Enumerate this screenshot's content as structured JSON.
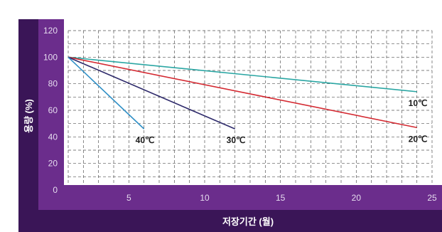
{
  "chart_data": {
    "type": "line",
    "xlabel": "저장기간 (월)",
    "ylabel": "용량 (%)",
    "xlim": [
      1,
      25
    ],
    "ylim": [
      0,
      120
    ],
    "x_ticks": [
      5,
      10,
      15,
      20,
      25
    ],
    "y_ticks": [
      0,
      20,
      40,
      60,
      80,
      100,
      120
    ],
    "grid": true,
    "series": [
      {
        "name": "10℃",
        "color": "#2aa6a3",
        "x": [
          1,
          24
        ],
        "y": [
          100,
          74
        ]
      },
      {
        "name": "20℃",
        "color": "#d42a32",
        "x": [
          1,
          24
        ],
        "y": [
          100,
          47
        ]
      },
      {
        "name": "30℃",
        "color": "#2e2a6b",
        "x": [
          1,
          12
        ],
        "y": [
          100,
          46
        ]
      },
      {
        "name": "40℃",
        "color": "#2f8fc6",
        "x": [
          1,
          6
        ],
        "y": [
          100,
          46
        ]
      }
    ]
  }
}
